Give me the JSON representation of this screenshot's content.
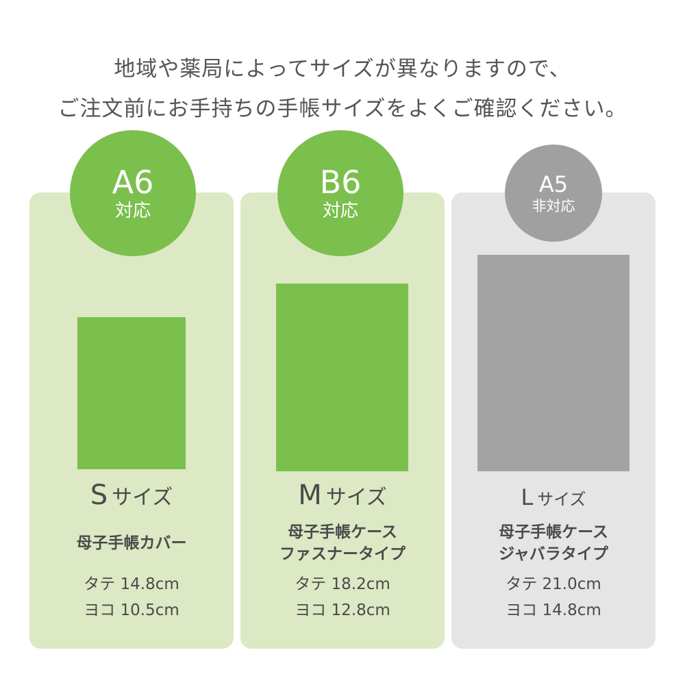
{
  "notice": {
    "line1": "地域や薬局によってサイズが異なりますので、",
    "line2": "ご注文前にお手持ちの手帳サイズをよくご確認ください。"
  },
  "colors": {
    "accent_green": "#7bbf4c",
    "card_green": "#dce9c4",
    "card_gray": "#e5e5e5",
    "book_gray": "#a3a3a3",
    "badge_gray": "#a0a0a0"
  },
  "cards": [
    {
      "size_code": "A6",
      "support": "対応",
      "size_letter": "S",
      "size_suffix": "サイズ",
      "product_line1": "母子手帳カバー",
      "product_line2": "",
      "height_label": "タテ 14.8cm",
      "width_label": "ヨコ 10.5cm"
    },
    {
      "size_code": "B6",
      "support": "対応",
      "size_letter": "M",
      "size_suffix": "サイズ",
      "product_line1": "母子手帳ケース",
      "product_line2": "ファスナータイプ",
      "height_label": "タテ 18.2cm",
      "width_label": "ヨコ 12.8cm"
    },
    {
      "size_code": "A5",
      "support": "非対応",
      "size_letter": "L",
      "size_suffix": "サイズ",
      "product_line1": "母子手帳ケース",
      "product_line2": "ジャバラタイプ",
      "height_label": "タテ 21.0cm",
      "width_label": "ヨコ 14.8cm"
    }
  ]
}
